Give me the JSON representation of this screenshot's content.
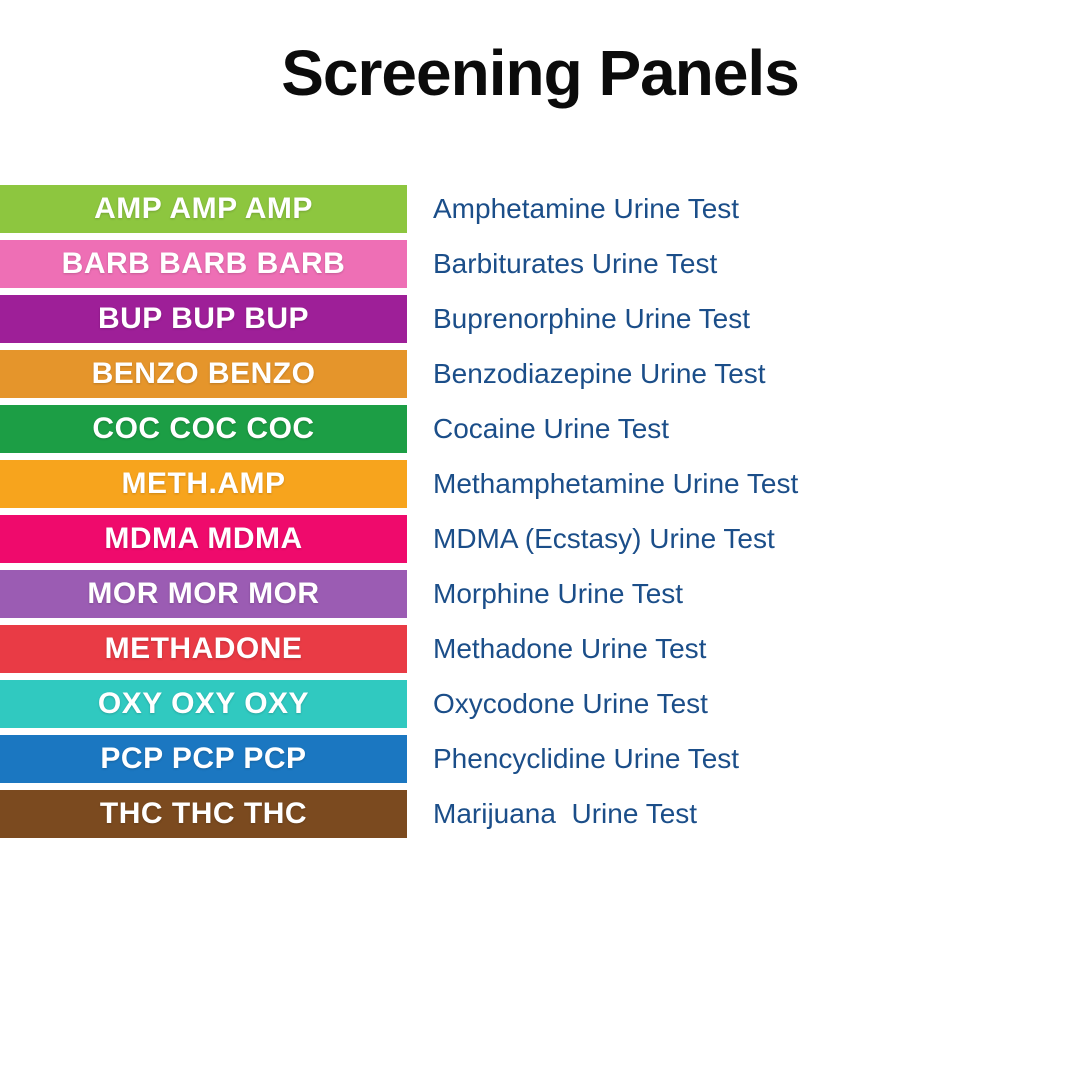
{
  "title": "Screening Panels",
  "colors": {
    "background": "#ffffff",
    "title_text": "#0b0b0b",
    "band_text": "#ffffff",
    "label_text": "#1b4e89"
  },
  "panels": [
    {
      "abbr": "AMP AMP AMP",
      "name": "Amphetamine Urine Test",
      "color": "#8dc63f"
    },
    {
      "abbr": "BARB BARB BARB",
      "name": "Barbiturates Urine Test",
      "color": "#ee6fb5"
    },
    {
      "abbr": "BUP BUP BUP",
      "name": "Buprenorphine Urine Test",
      "color": "#9e1f98"
    },
    {
      "abbr": "BENZO BENZO",
      "name": "Benzodiazepine Urine Test",
      "color": "#e5952b"
    },
    {
      "abbr": "COC COC COC",
      "name": "Cocaine Urine Test",
      "color": "#1c9e45"
    },
    {
      "abbr": "METH.AMP",
      "name": "Methamphetamine Urine Test",
      "color": "#f7a41d"
    },
    {
      "abbr": "MDMA MDMA",
      "name": "MDMA (Ecstasy) Urine Test",
      "color": "#ef0a6c"
    },
    {
      "abbr": "MOR MOR MOR",
      "name": "Morphine Urine Test",
      "color": "#9b5cb3"
    },
    {
      "abbr": "METHADONE",
      "name": "Methadone Urine Test",
      "color": "#e93b45"
    },
    {
      "abbr": "OXY OXY OXY",
      "name": "Oxycodone Urine Test",
      "color": "#30c9c0"
    },
    {
      "abbr": "PCP PCP PCP",
      "name": "Phencyclidine Urine Test",
      "color": "#1b77c1"
    },
    {
      "abbr": "THC THC THC",
      "name": "Marijuana  Urine Test",
      "color": "#7b4a1f"
    }
  ]
}
